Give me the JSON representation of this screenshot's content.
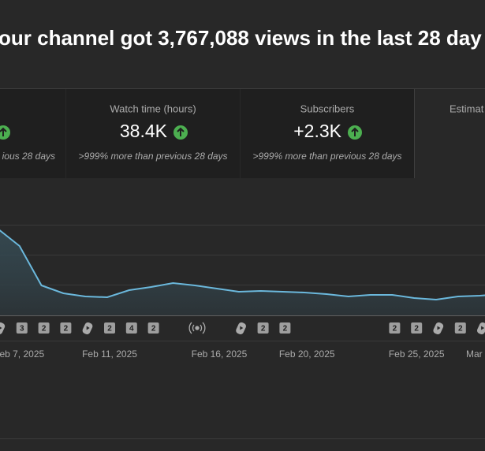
{
  "header": {
    "title": "our channel got 3,767,088 views in the last 28 day"
  },
  "cards": [
    {
      "subtext": "ious 28 days"
    },
    {
      "label": "Watch time (hours)",
      "value": "38.4K",
      "subtext": ">999% more than previous 28 days"
    },
    {
      "label": "Subscribers",
      "value": "+2.3K",
      "subtext": ">999% more than previous 28 days"
    },
    {
      "label": "Estimat"
    }
  ],
  "chart_data": {
    "type": "line",
    "color": "#6bb8dc",
    "categories": [
      null,
      "eb 7, 2025",
      null,
      null,
      null,
      "Feb 11, 2025",
      null,
      null,
      null,
      null,
      "Feb 16, 2025",
      null,
      null,
      null,
      "Feb 20, 2025",
      null,
      null,
      null,
      null,
      "Feb 25, 2025",
      null,
      null,
      null,
      "Mar"
    ],
    "values": [
      110,
      88,
      38,
      28,
      24,
      23,
      32,
      36,
      41,
      38,
      34,
      30,
      31,
      30,
      29,
      27,
      24,
      26,
      26,
      22,
      20,
      24,
      25,
      27
    ],
    "ylim": [
      0,
      115
    ]
  },
  "badges": [
    "3",
    "2",
    "2",
    "2",
    "4",
    "2",
    "2",
    "2",
    "2",
    "2",
    "2"
  ]
}
